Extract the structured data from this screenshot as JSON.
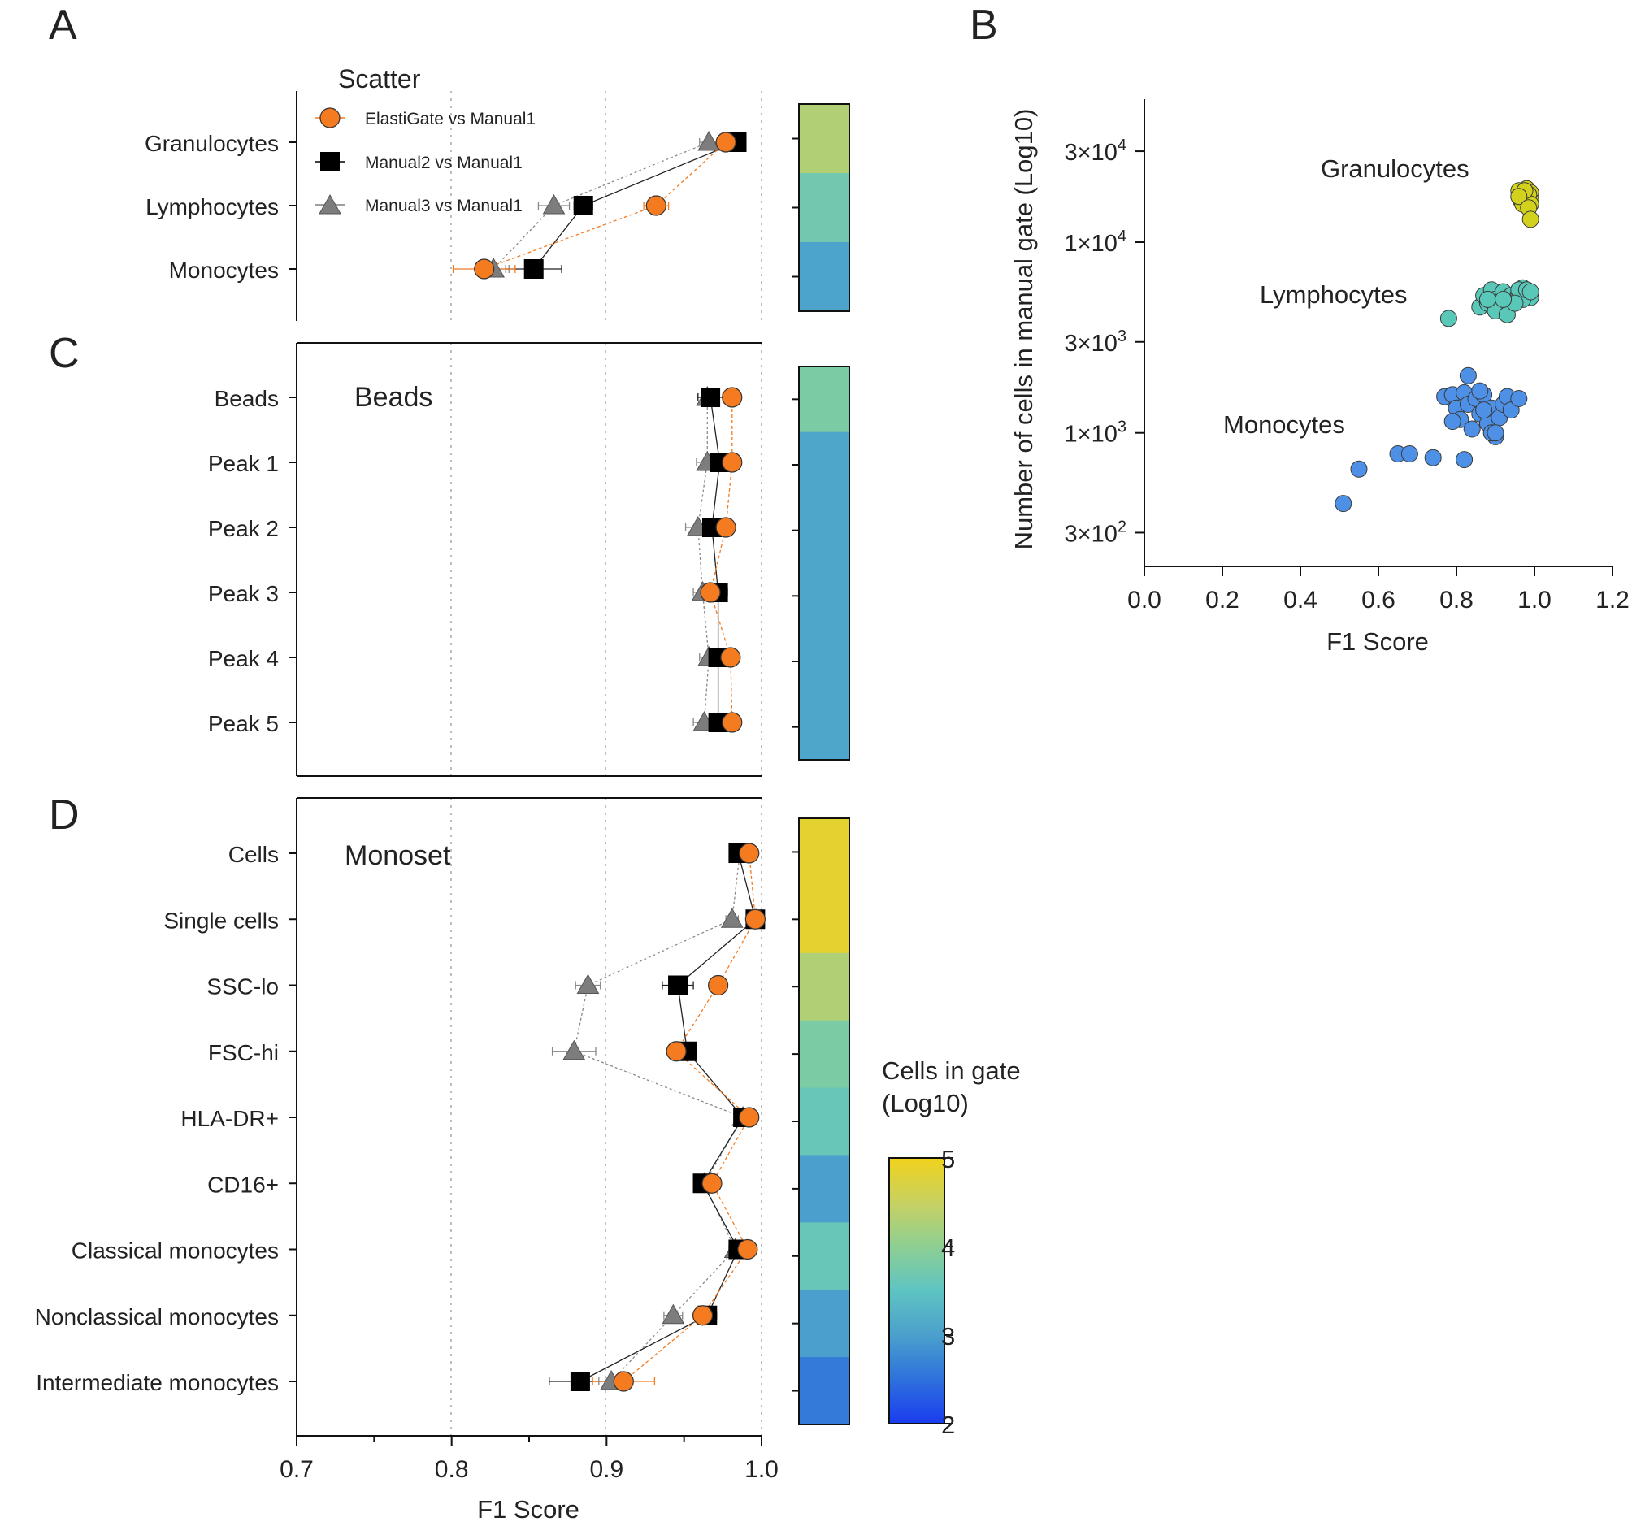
{
  "panel_letters": [
    "A",
    "B",
    "C",
    "D"
  ],
  "shared_axis": {
    "xlabel": "F1  Score",
    "xticks": [
      "0.7",
      "0.8",
      "0.9",
      "1.0"
    ],
    "xlim": [
      0.7,
      1.0
    ]
  },
  "colorbar": {
    "title_line1": "Cells in gate",
    "title_line2": "(Log10)",
    "ticks": [
      "5",
      "4",
      "3",
      "2"
    ],
    "range": [
      2,
      5
    ],
    "colors": [
      "#1a3cf0",
      "#2f72dc",
      "#4a9fcc",
      "#5ec4c2",
      "#8fcf92",
      "#c7d162",
      "#f1d21c"
    ]
  },
  "legend": [
    {
      "label": "ElastiGate vs Manual1",
      "shape": "circle",
      "color": "#f47b20"
    },
    {
      "label": "Manual2 vs Manual1",
      "shape": "square",
      "color": "#000000"
    },
    {
      "label": "Manual3 vs Manual1",
      "shape": "triangle",
      "color": "#7d7d7d"
    }
  ],
  "chart_data": [
    {
      "id": "A",
      "type": "scatter",
      "title": "Scatter",
      "categories": [
        "Granulocytes",
        "Lymphocytes",
        "Monocytes"
      ],
      "series": [
        {
          "name": "ElastiGate vs Manual1",
          "values": [
            0.977,
            0.932,
            0.821
          ],
          "errors": [
            0.005,
            0.008,
            0.02
          ]
        },
        {
          "name": "Manual2 vs Manual1",
          "values": [
            0.984,
            0.885,
            0.853
          ],
          "errors": [
            0.004,
            0.006,
            0.018
          ]
        },
        {
          "name": "Manual3 vs Manual1",
          "values": [
            0.966,
            0.866,
            0.827
          ],
          "errors": [
            0.006,
            0.01,
            0.01
          ]
        }
      ],
      "heat_log10": [
        4.3,
        3.7,
        3.05
      ]
    },
    {
      "id": "C",
      "type": "scatter",
      "title": "Beads",
      "categories": [
        "Beads",
        "Peak 1",
        "Peak 2",
        "Peak 3",
        "Peak 4",
        "Peak 5"
      ],
      "series": [
        {
          "name": "ElastiGate vs Manual1",
          "values": [
            0.981,
            0.981,
            0.977,
            0.967,
            0.98,
            0.981
          ],
          "errors": [
            0.003,
            0.004,
            0.004,
            0.004,
            0.003,
            0.003
          ]
        },
        {
          "name": "Manual2 vs Manual1",
          "values": [
            0.967,
            0.973,
            0.968,
            0.972,
            0.972,
            0.972
          ],
          "errors": [
            0.008,
            0.006,
            0.007,
            0.006,
            0.006,
            0.006
          ]
        },
        {
          "name": "Manual3 vs Manual1",
          "values": [
            0.965,
            0.965,
            0.959,
            0.962,
            0.966,
            0.963
          ],
          "errors": [
            0.006,
            0.007,
            0.008,
            0.006,
            0.006,
            0.007
          ]
        }
      ],
      "heat_log10": [
        3.8,
        3.1,
        3.1,
        3.1,
        3.1,
        3.1
      ]
    },
    {
      "id": "D",
      "type": "scatter",
      "title": "Monoset",
      "categories": [
        "Cells",
        "Single cells",
        "SSC-lo",
        "FSC-hi",
        "HLA-DR+",
        "CD16+",
        "Classical monocytes",
        "Nonclassical monocytes",
        "Intermediate monocytes"
      ],
      "series": [
        {
          "name": "ElastiGate vs Manual1",
          "values": [
            0.992,
            0.996,
            0.972,
            0.945,
            0.992,
            0.968,
            0.991,
            0.962,
            0.911
          ],
          "errors": [
            0.003,
            0.003,
            0.004,
            0.005,
            0.003,
            0.004,
            0.003,
            0.005,
            0.02
          ]
        },
        {
          "name": "Manual2 vs Manual1",
          "values": [
            0.985,
            0.996,
            0.946,
            0.952,
            0.988,
            0.962,
            0.985,
            0.965,
            0.883
          ],
          "errors": [
            0.004,
            0.003,
            0.01,
            0.006,
            0.003,
            0.005,
            0.004,
            0.006,
            0.02
          ]
        },
        {
          "name": "Manual3 vs Manual1",
          "values": [
            0.986,
            0.981,
            0.888,
            0.879,
            0.988,
            0.963,
            0.983,
            0.943,
            0.903
          ],
          "errors": [
            0.004,
            0.004,
            0.008,
            0.014,
            0.003,
            0.004,
            0.004,
            0.006,
            0.008
          ]
        }
      ],
      "heat_log10": [
        4.85,
        4.85,
        4.3,
        3.8,
        3.6,
        3.0,
        3.6,
        3.0,
        2.6
      ]
    },
    {
      "id": "B",
      "type": "scatter",
      "xlabel": "F1 Score",
      "ylabel": "Number of cells in manual gate (Log10)",
      "xlim": [
        0.0,
        1.2
      ],
      "xticks": [
        "0.0",
        "0.2",
        "0.4",
        "0.6",
        "0.8",
        "1.0",
        "1.2"
      ],
      "yscale": "log10",
      "ylim_log10": [
        2.3,
        4.75
      ],
      "yticks": [
        {
          "log10": 4.477,
          "mantissa": "3×10",
          "exp": "4"
        },
        {
          "log10": 4.0,
          "mantissa": "1×10",
          "exp": "4"
        },
        {
          "log10": 3.477,
          "mantissa": "3×10",
          "exp": "3"
        },
        {
          "log10": 3.0,
          "mantissa": "1×10",
          "exp": "3"
        },
        {
          "log10": 2.477,
          "mantissa": "3×10",
          "exp": "2"
        }
      ],
      "groups": [
        {
          "name": "Granulocytes",
          "color": "#d2d21e",
          "points": [
            [
              0.96,
              4.27
            ],
            [
              0.97,
              4.25
            ],
            [
              0.98,
              4.28
            ],
            [
              0.99,
              4.26
            ],
            [
              0.975,
              4.24
            ],
            [
              0.965,
              4.22
            ],
            [
              0.98,
              4.23
            ],
            [
              0.99,
              4.22
            ],
            [
              0.97,
              4.2
            ],
            [
              0.985,
              4.25
            ],
            [
              0.99,
              4.2
            ],
            [
              0.975,
              4.27
            ],
            [
              0.96,
              4.24
            ],
            [
              0.985,
              4.18
            ],
            [
              0.99,
              4.12
            ]
          ]
        },
        {
          "name": "Lymphocytes",
          "color": "#5ac8b8",
          "points": [
            [
              0.78,
              3.6
            ],
            [
              0.86,
              3.66
            ],
            [
              0.87,
              3.72
            ],
            [
              0.88,
              3.68
            ],
            [
              0.89,
              3.75
            ],
            [
              0.9,
              3.7
            ],
            [
              0.91,
              3.66
            ],
            [
              0.92,
              3.74
            ],
            [
              0.93,
              3.69
            ],
            [
              0.94,
              3.72
            ],
            [
              0.95,
              3.7
            ],
            [
              0.96,
              3.73
            ],
            [
              0.97,
              3.76
            ],
            [
              0.98,
              3.72
            ],
            [
              0.99,
              3.71
            ],
            [
              0.97,
              3.7
            ],
            [
              0.96,
              3.75
            ],
            [
              0.9,
              3.64
            ],
            [
              0.88,
              3.7
            ],
            [
              0.93,
              3.62
            ],
            [
              0.95,
              3.68
            ],
            [
              0.92,
              3.7
            ],
            [
              0.98,
              3.75
            ],
            [
              0.99,
              3.74
            ]
          ]
        },
        {
          "name": "Monocytes",
          "color": "#4d90e6",
          "points": [
            [
              0.51,
              2.63
            ],
            [
              0.55,
              2.81
            ],
            [
              0.65,
              2.89
            ],
            [
              0.68,
              2.89
            ],
            [
              0.74,
              2.87
            ],
            [
              0.77,
              3.19
            ],
            [
              0.79,
              3.2
            ],
            [
              0.8,
              3.13
            ],
            [
              0.81,
              3.07
            ],
            [
              0.82,
              3.21
            ],
            [
              0.83,
              3.3
            ],
            [
              0.83,
              3.15
            ],
            [
              0.84,
              3.02
            ],
            [
              0.85,
              3.18
            ],
            [
              0.86,
              3.1
            ],
            [
              0.87,
              3.2
            ],
            [
              0.88,
              3.05
            ],
            [
              0.89,
              3.13
            ],
            [
              0.9,
              2.98
            ],
            [
              0.91,
              3.08
            ],
            [
              0.92,
              3.15
            ],
            [
              0.93,
              3.19
            ],
            [
              0.94,
              3.12
            ],
            [
              0.96,
              3.18
            ],
            [
              0.89,
              3.0
            ],
            [
              0.82,
              2.86
            ],
            [
              0.86,
              3.22
            ],
            [
              0.9,
              3.0
            ],
            [
              0.79,
              3.06
            ],
            [
              0.87,
              3.12
            ]
          ]
        }
      ],
      "labels": [
        "Granulocytes",
        "Lymphocytes",
        "Monocytes"
      ]
    }
  ]
}
